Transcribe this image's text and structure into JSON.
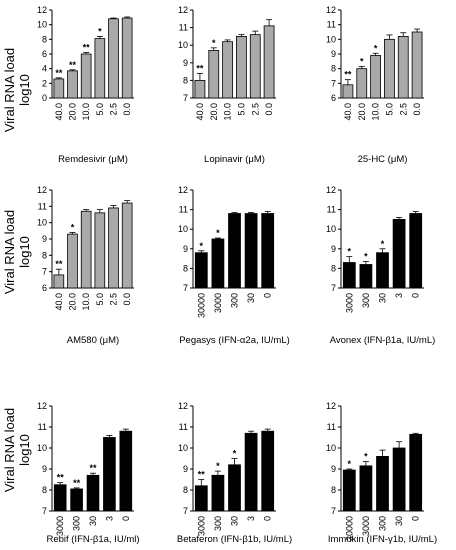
{
  "ylabel_parts": [
    "Viral RNA load",
    "log10"
  ],
  "chart_data": [
    {
      "type": "bar",
      "xlabel": "Remdesivir (μM)",
      "categories": [
        "40.0",
        "20.0",
        "10.0",
        "5.0",
        "2.5",
        "0.0"
      ],
      "values": [
        2.6,
        3.7,
        6.0,
        8.1,
        10.8,
        10.9
      ],
      "errors": [
        0.15,
        0.15,
        0.2,
        0.3,
        0.1,
        0.15
      ],
      "sig": [
        "**",
        "**",
        "**",
        "*",
        "",
        ""
      ],
      "ylim": [
        0,
        12
      ],
      "yticks": [
        0,
        2,
        4,
        6,
        8,
        10,
        12
      ],
      "ytick_labels": [
        "0",
        "2",
        "4",
        "6",
        "8",
        "10",
        "12"
      ],
      "color": "#a9a9a9"
    },
    {
      "type": "bar",
      "xlabel": "Lopinavir (μM)",
      "categories": [
        "40.0",
        "20.0",
        "10.0",
        "5.0",
        "2.5",
        "0.0"
      ],
      "values": [
        8.0,
        9.7,
        10.2,
        10.5,
        10.6,
        11.1
      ],
      "errors": [
        0.4,
        0.15,
        0.1,
        0.1,
        0.2,
        0.35
      ],
      "sig": [
        "**",
        "*",
        "",
        "",
        "",
        ""
      ],
      "ylim": [
        7,
        12
      ],
      "yticks": [
        7,
        8,
        9,
        10,
        11,
        12
      ],
      "ytick_labels": [
        "7",
        "8",
        "9",
        "10",
        "11",
        "12"
      ],
      "color": "#a9a9a9"
    },
    {
      "type": "bar",
      "xlabel": "25-HC (μM)",
      "categories": [
        "40.0",
        "20.0",
        "10.0",
        "5.0",
        "2.5",
        "0.0"
      ],
      "values": [
        6.9,
        8.0,
        8.9,
        10.0,
        10.2,
        10.5
      ],
      "errors": [
        0.35,
        0.15,
        0.15,
        0.3,
        0.25,
        0.2
      ],
      "sig": [
        "**",
        "*",
        "*",
        "",
        "",
        ""
      ],
      "ylim": [
        6,
        12
      ],
      "yticks": [
        6,
        7,
        8,
        9,
        10,
        11,
        12
      ],
      "ytick_labels": [
        "6",
        "7",
        "8",
        "9",
        "10",
        "11",
        "12"
      ],
      "color": "#a9a9a9"
    },
    {
      "type": "bar",
      "xlabel": "AM580 (μM)",
      "categories": [
        "40.0",
        "20.0",
        "10.0",
        "5.0",
        "2.5",
        "0.0"
      ],
      "values": [
        6.8,
        9.3,
        10.7,
        10.6,
        10.9,
        11.2
      ],
      "errors": [
        0.35,
        0.1,
        0.1,
        0.2,
        0.15,
        0.15
      ],
      "sig": [
        "**",
        "*",
        "",
        "",
        "",
        ""
      ],
      "ylim": [
        6,
        12
      ],
      "yticks": [
        6,
        7,
        8,
        9,
        10,
        11,
        12
      ],
      "ytick_labels": [
        "6",
        "7",
        "8",
        "9",
        "10",
        "11",
        "12"
      ],
      "color": "#a9a9a9"
    },
    {
      "type": "bar",
      "xlabel": "Pegasys (IFN-α2a, IU/mL)",
      "categories": [
        "30000",
        "3000",
        "300",
        "30",
        "0"
      ],
      "values": [
        8.8,
        9.5,
        10.8,
        10.8,
        10.8
      ],
      "errors": [
        0.1,
        0.05,
        0.05,
        0.05,
        0.1
      ],
      "sig": [
        "*",
        "*",
        "",
        "",
        ""
      ],
      "ylim": [
        7,
        12
      ],
      "yticks": [
        7,
        8,
        9,
        10,
        11,
        12
      ],
      "ytick_labels": [
        "7",
        "8",
        "9",
        "10",
        "11",
        "12"
      ],
      "color": "#000000"
    },
    {
      "type": "bar",
      "xlabel": "Avonex (IFN-β1a, IU/mL)",
      "categories": [
        "3000",
        "300",
        "30",
        "3",
        "0"
      ],
      "values": [
        8.3,
        8.2,
        8.8,
        10.5,
        10.8
      ],
      "errors": [
        0.3,
        0.15,
        0.2,
        0.1,
        0.1
      ],
      "sig": [
        "*",
        "*",
        "*",
        "",
        ""
      ],
      "ylim": [
        7,
        12
      ],
      "yticks": [
        7,
        8,
        9,
        10,
        11,
        12
      ],
      "ytick_labels": [
        "7",
        "8",
        "9",
        "10",
        "11",
        "12"
      ],
      "color": "#000000"
    },
    {
      "type": "bar",
      "xlabel": "Rebif (IFN-β1a, IU/ml)",
      "categories": [
        "3000",
        "300",
        "30",
        "3",
        "0"
      ],
      "values": [
        8.25,
        8.05,
        8.7,
        10.5,
        10.8
      ],
      "errors": [
        0.1,
        0.05,
        0.1,
        0.1,
        0.1
      ],
      "sig": [
        "**",
        "**",
        "**",
        "",
        ""
      ],
      "ylim": [
        7,
        12
      ],
      "yticks": [
        7,
        8,
        9,
        10,
        11,
        12
      ],
      "ytick_labels": [
        "7",
        "8",
        "9",
        "10",
        "11",
        "12"
      ],
      "color": "#000000"
    },
    {
      "type": "bar",
      "xlabel": "Betaferon (IFN-β1b, IU/mL)",
      "categories": [
        "3000",
        "300",
        "30",
        "3",
        "0"
      ],
      "values": [
        8.2,
        8.7,
        9.2,
        10.7,
        10.8
      ],
      "errors": [
        0.3,
        0.2,
        0.3,
        0.1,
        0.1
      ],
      "sig": [
        "**",
        "*",
        "*",
        "",
        ""
      ],
      "ylim": [
        7,
        12
      ],
      "yticks": [
        7,
        8,
        9,
        10,
        11,
        12
      ],
      "ytick_labels": [
        "7",
        "8",
        "9",
        "10",
        "11",
        "12"
      ],
      "color": "#000000"
    },
    {
      "type": "bar",
      "xlabel": "Immukin (IFN-γ1b, IU/mL)",
      "categories": [
        "30000",
        "3000",
        "300",
        "30",
        "0"
      ],
      "values": [
        8.95,
        9.15,
        9.6,
        10.0,
        10.65
      ],
      "errors": [
        0.05,
        0.2,
        0.3,
        0.3,
        0.05
      ],
      "sig": [
        "*",
        "*",
        "",
        "",
        ""
      ],
      "ylim": [
        7,
        12
      ],
      "yticks": [
        7,
        8,
        9,
        10,
        11,
        12
      ],
      "ytick_labels": [
        "7",
        "8",
        "9",
        "10",
        "11",
        "12"
      ],
      "color": "#000000"
    }
  ]
}
